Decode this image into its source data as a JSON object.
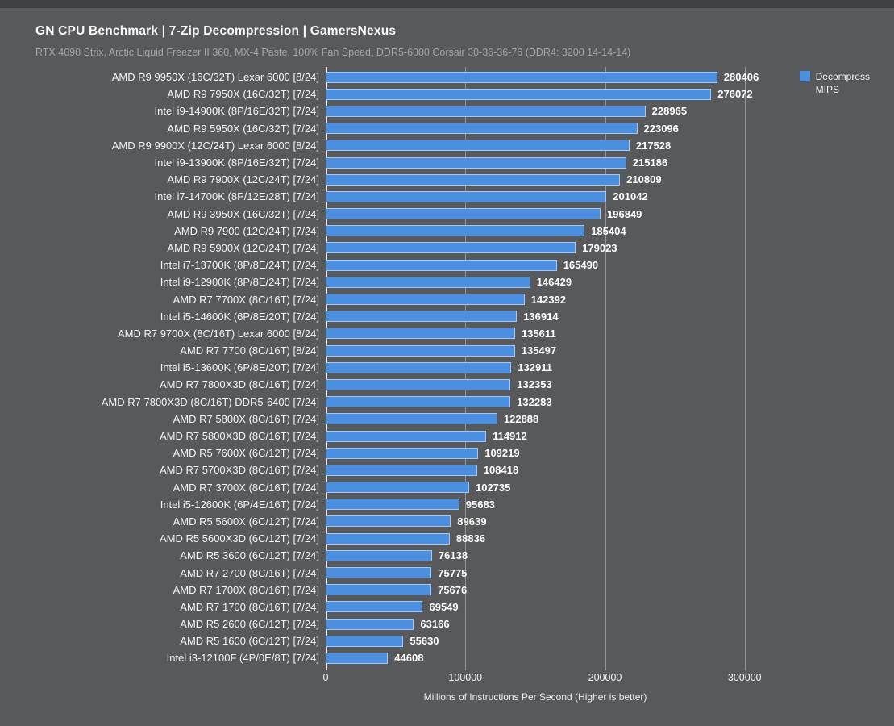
{
  "header": {
    "title": "GN CPU Benchmark | 7-Zip Decompression | GamersNexus",
    "subtitle": "RTX 4090 Strix, Arctic Liquid Freezer II 360, MX-4 Paste, 100% Fan Speed, DDR5-6000 Corsair 30-36-36-76 (DDR4: 3200 14-14-14)"
  },
  "legend": {
    "line1": "Decompress",
    "line2": "MIPS"
  },
  "colors": {
    "background": "#58595b",
    "top_strip": "#404143",
    "bar": "#4a8fe0"
  },
  "chart_data": {
    "type": "bar",
    "orientation": "horizontal",
    "title": "GN CPU Benchmark | 7-Zip Decompression | GamersNexus",
    "subtitle": "RTX 4090 Strix, Arctic Liquid Freezer II 360, MX-4 Paste, 100% Fan Speed, DDR5-6000 Corsair 30-36-36-76 (DDR4: 3200 14-14-14)",
    "series_name": "Decompress MIPS",
    "legend_position": "top-right",
    "grid": true,
    "bar_color": "#4a8fe0",
    "xlabel": "Millions of Instructions Per Second (Higher is better)",
    "xlim": [
      0,
      400000
    ],
    "x_ticks": [
      0,
      100000,
      200000,
      300000
    ],
    "categories": [
      "AMD R9 9950X (16C/32T) Lexar 6000 [8/24]",
      "AMD R9 7950X (16C/32T) [7/24]",
      "Intel i9-14900K (8P/16E/32T) [7/24]",
      "AMD R9 5950X (16C/32T) [7/24]",
      "AMD R9 9900X (12C/24T) Lexar 6000 [8/24]",
      "Intel i9-13900K (8P/16E/32T) [7/24]",
      "AMD R9 7900X (12C/24T) [7/24]",
      "Intel i7-14700K (8P/12E/28T) [7/24]",
      "AMD R9 3950X (16C/32T) [7/24]",
      "AMD R9 7900 (12C/24T) [7/24]",
      "AMD R9 5900X (12C/24T) [7/24]",
      "Intel i7-13700K (8P/8E/24T) [7/24]",
      "Intel i9-12900K (8P/8E/24T) [7/24]",
      "AMD R7 7700X (8C/16T) [7/24]",
      "Intel i5-14600K (6P/8E/20T) [7/24]",
      "AMD R7 9700X (8C/16T) Lexar 6000 [8/24]",
      "AMD R7 7700 (8C/16T) [8/24]",
      "Intel i5-13600K (6P/8E/20T) [7/24]",
      "AMD R7 7800X3D (8C/16T) [7/24]",
      "AMD R7 7800X3D (8C/16T) DDR5-6400 [7/24]",
      "AMD R7 5800X (8C/16T) [7/24]",
      "AMD R7 5800X3D (8C/16T) [7/24]",
      "AMD R5 7600X (6C/12T) [7/24]",
      "AMD R7 5700X3D (8C/16T) [7/24]",
      "AMD R7 3700X (8C/16T) [7/24]",
      "Intel i5-12600K (6P/4E/16T) [7/24]",
      "AMD R5 5600X (6C/12T) [7/24]",
      "AMD R5 5600X3D (6C/12T) [7/24]",
      "AMD R5 3600 (6C/12T) [7/24]",
      "AMD R7 2700 (8C/16T) [7/24]",
      "AMD R7 1700X (8C/16T) [7/24]",
      "AMD R7 1700 (8C/16T) [7/24]",
      "AMD R5 2600 (6C/12T) [7/24]",
      "AMD R5 1600 (6C/12T) [7/24]",
      "Intel i3-12100F (4P/0E/8T) [7/24]"
    ],
    "values": [
      280406,
      276072,
      228965,
      223096,
      217528,
      215186,
      210809,
      201042,
      196849,
      185404,
      179023,
      165490,
      146429,
      142392,
      136914,
      135611,
      135497,
      132911,
      132353,
      132283,
      122888,
      114912,
      109219,
      108418,
      102735,
      95683,
      89639,
      88836,
      76138,
      75775,
      75676,
      69549,
      63166,
      55630,
      44608
    ]
  }
}
